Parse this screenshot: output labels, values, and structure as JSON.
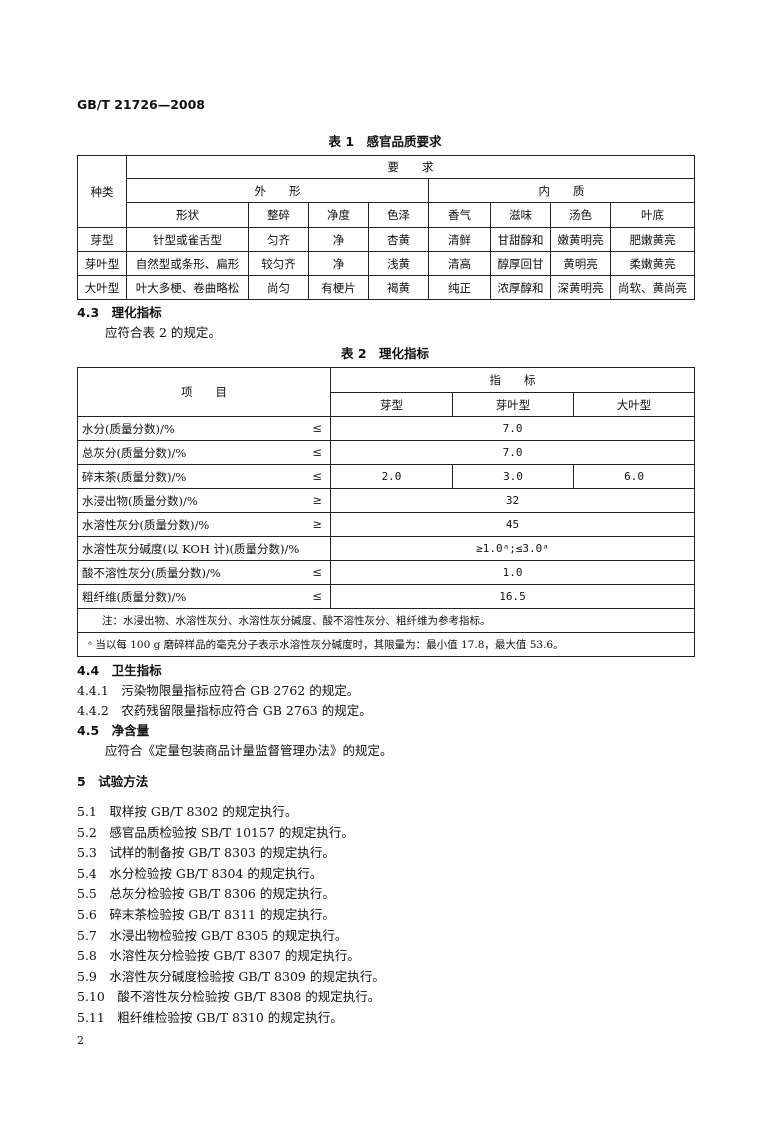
{
  "header": "GB/T 21726—2008",
  "table1": {
    "title": "表 1　感官品质要求",
    "col_kind": "种类",
    "requirements": "要　　求",
    "appearance": "外　　形",
    "internal": "内　　质",
    "subheads": [
      "形状",
      "整碎",
      "净度",
      "色泽",
      "香气",
      "滋味",
      "汤色",
      "叶底"
    ],
    "rows": [
      [
        "芽型",
        "针型或雀舌型",
        "匀齐",
        "净",
        "杏黄",
        "清鲜",
        "甘甜醇和",
        "嫩黄明亮",
        "肥嫩黄亮"
      ],
      [
        "芽叶型",
        "自然型或条形、扁形",
        "较匀齐",
        "净",
        "浅黄",
        "清高",
        "醇厚回甘",
        "黄明亮",
        "柔嫩黄亮"
      ],
      [
        "大叶型",
        "叶大多梗、卷曲略松",
        "尚匀",
        "有梗片",
        "褐黄",
        "纯正",
        "浓厚醇和",
        "深黄明亮",
        "尚软、黄尚亮"
      ]
    ]
  },
  "s43": {
    "heading": "4.3　理化指标",
    "text": "应符合表 2 的规定。"
  },
  "table2": {
    "title": "表 2　理化指标",
    "item": "项　　目",
    "index": "指　　标",
    "subheads": [
      "芽型",
      "芽叶型",
      "大叶型"
    ],
    "rows": [
      {
        "name": "水分(质量分数)/%",
        "sym": "≤",
        "value": "7.0"
      },
      {
        "name": "总灰分(质量分数)/%",
        "sym": "≤",
        "value": "7.0"
      },
      {
        "name": "碎末茶(质量分数)/%",
        "sym": "≤",
        "values": [
          "2.0",
          "3.0",
          "6.0"
        ]
      },
      {
        "name": "水浸出物(质量分数)/%",
        "sym": "≥",
        "value": "32"
      },
      {
        "name": "水溶性灰分(质量分数)/%",
        "sym": "≥",
        "value": "45"
      },
      {
        "name": "水溶性灰分碱度(以 KOH 计)(质量分数)/%",
        "sym": "",
        "value": "≥1.0ᵃ;≤3.0ᵃ"
      },
      {
        "name": "酸不溶性灰分(质量分数)/%",
        "sym": "≤",
        "value": "1.0"
      },
      {
        "name": "粗纤维(质量分数)/%",
        "sym": "≤",
        "value": "16.5"
      }
    ],
    "note": "注：水浸出物、水溶性灰分、水溶性灰分碱度、酸不溶性灰分、粗纤维为参考指标。",
    "footnote": "ᵃ 当以每 100 g 磨碎样品的毫克分子表示水溶性灰分碱度时，其限量为：最小值 17.8，最大值 53.6。"
  },
  "s44": {
    "heading": "4.4　卫生指标",
    "items": [
      "4.4.1　污染物限量指标应符合 GB 2762 的规定。",
      "4.4.2　农药残留限量指标应符合 GB 2763 的规定。"
    ]
  },
  "s45": {
    "heading": "4.5　净含量",
    "text": "应符合《定量包装商品计量监督管理办法》的规定。"
  },
  "s5": {
    "heading": "5　试验方法",
    "items": [
      "5.1　取样按 GB/T 8302 的规定执行。",
      "5.2　感官品质检验按 SB/T 10157 的规定执行。",
      "5.3　试样的制备按 GB/T 8303 的规定执行。",
      "5.4　水分检验按 GB/T 8304 的规定执行。",
      "5.5　总灰分检验按 GB/T 8306 的规定执行。",
      "5.6　碎末茶检验按 GB/T 8311 的规定执行。",
      "5.7　水浸出物检验按 GB/T 8305 的规定执行。",
      "5.8　水溶性灰分检验按 GB/T 8307 的规定执行。",
      "5.9　水溶性灰分碱度检验按 GB/T 8309 的规定执行。",
      "5.10　酸不溶性灰分检验按 GB/T 8308 的规定执行。",
      "5.11　粗纤维检验按 GB/T 8310 的规定执行。"
    ]
  },
  "page_number": "2"
}
